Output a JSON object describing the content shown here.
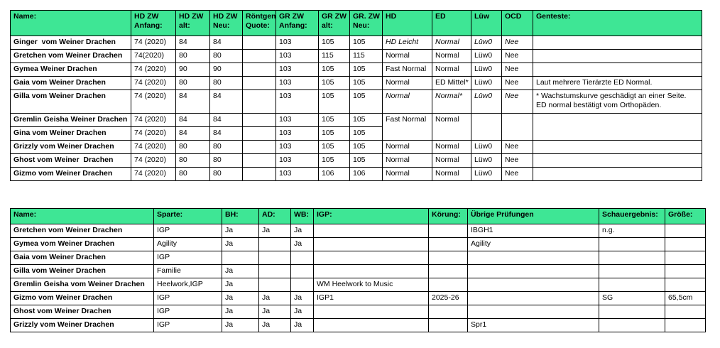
{
  "colors": {
    "header_bg": "#3ee695",
    "border": "#000000",
    "text": "#000000",
    "page_bg": "#ffffff"
  },
  "table1": {
    "headers": [
      "Name:",
      "HD ZW Anfang:",
      "HD ZW alt:",
      "HD ZW Neu:",
      "Röntgen Quote:",
      "GR ZW Anfang:",
      "GR ZW alt:",
      "GR. ZW Neu:",
      "HD",
      "ED",
      "Lüw",
      "OCD",
      "Genteste:"
    ],
    "rows": [
      {
        "cells": [
          "Ginger  vom Weiner Drachen",
          "74 (2020)",
          "84",
          "84",
          "",
          "103",
          "105",
          "105",
          "HD Leicht",
          "Normal",
          "Lüw0",
          "Nee",
          ""
        ],
        "italic_cells": [
          8,
          9,
          10,
          11
        ]
      },
      {
        "cells": [
          "Gretchen vom Weiner Drachen",
          "74(2020)",
          "80",
          "80",
          "",
          "103",
          "115",
          "115",
          "Normal",
          "Normal",
          "Lüw0",
          "Nee",
          ""
        ]
      },
      {
        "cells": [
          "Gymea Weiner Drachen",
          "74 (2020)",
          "90",
          "90",
          "",
          "103",
          "105",
          "105",
          "Fast Normal",
          "Normal",
          "Lüw0",
          "Nee",
          ""
        ]
      },
      {
        "cells": [
          "Gaia vom Weiner Drachen",
          "74 (2020)",
          "80",
          "80",
          "",
          "103",
          "105",
          "105",
          "Normal",
          "ED Mittel*",
          "Lüw0",
          "Nee",
          "Laut mehrere Tierärzte ED Normal."
        ]
      },
      {
        "cells": [
          "Gilla vom Weiner Drachen",
          "74 (2020)",
          "84",
          "84",
          "",
          "103",
          "105",
          "105",
          "Normal",
          "Normal*",
          "Lüw0",
          "Nee",
          "* Wachstumskurve geschädigt an einer Seite.\nED normal bestätigt vom Orthopäden."
        ],
        "italic_cells": [
          8,
          9,
          10,
          11
        ],
        "tall": true
      },
      {
        "cells": [
          "Gremlin Geisha Weiner Drachen",
          "74 (2020)",
          "84",
          "84",
          "",
          "103",
          "105",
          "105",
          "Fast Normal",
          "Normal",
          "",
          "",
          ""
        ],
        "hidden_bottom_from": 8
      },
      {
        "cells": [
          "Gina vom Weiner Drachen",
          "74 (2020)",
          "84",
          "84",
          "",
          "103",
          "105",
          "105",
          "",
          "",
          "",
          "",
          ""
        ],
        "hidden_top_from": 8
      },
      {
        "cells": [
          "Grizzly vom Weiner Drachen",
          "74 (2020)",
          "80",
          "80",
          "",
          "103",
          "105",
          "105",
          "Normal",
          "Normal",
          "Lüw0",
          "Nee",
          ""
        ]
      },
      {
        "cells": [
          "Ghost vom Weiner  Drachen",
          "74 (2020)",
          "80",
          "80",
          "",
          "103",
          "105",
          "105",
          "Normal",
          "Normal",
          "Lüw0",
          "Nee",
          ""
        ]
      },
      {
        "cells": [
          "Gizmo vom Weiner Drachen",
          "74 (2020)",
          "80",
          "80",
          "",
          "103",
          "106",
          "106",
          "Normal",
          "Normal",
          "Lüw0",
          "Nee",
          ""
        ]
      }
    ]
  },
  "table2": {
    "headers": [
      "Name:",
      "Sparte:",
      "BH:",
      "AD:",
      "WB:",
      "IGP:",
      "Körung:",
      "Übrige Prüfungen",
      "Schauergebnis:",
      "Größe:"
    ],
    "rows": [
      {
        "cells": [
          "Gretchen vom Weiner Drachen",
          "IGP",
          "Ja",
          "Ja",
          "Ja",
          "",
          "",
          "IBGH1",
          "n.g.",
          ""
        ]
      },
      {
        "cells": [
          "Gymea vom Weiner Drachen",
          "Agility",
          "Ja",
          "",
          "Ja",
          "",
          "",
          "Agility",
          "",
          ""
        ]
      },
      {
        "cells": [
          "Gaia vom Weiner Drachen",
          "IGP",
          "",
          "",
          "",
          "",
          "",
          "",
          "",
          ""
        ]
      },
      {
        "cells": [
          "Gilla vom Weiner Drachen",
          "Familie",
          "Ja",
          "",
          "",
          "",
          "",
          "",
          "",
          ""
        ]
      },
      {
        "cells": [
          "Gremlin Geisha vom Weiner Drachen",
          "Heelwork,IGP",
          "Ja",
          "",
          "",
          "WM Heelwork to Music",
          "",
          "",
          "",
          ""
        ]
      },
      {
        "cells": [
          "Gizmo vom Weiner Drachen",
          "IGP",
          "Ja",
          "Ja",
          "Ja",
          "IGP1",
          "2025-26",
          "",
          "SG",
          "65,5cm"
        ]
      },
      {
        "cells": [
          "Ghost vom Weiner Drachen",
          "IGP",
          "Ja",
          "Ja",
          "Ja",
          "",
          "",
          "",
          "",
          ""
        ]
      },
      {
        "cells": [
          "Grizzly vom Weiner Drachen",
          "IGP",
          "Ja",
          "Ja",
          "Ja",
          "",
          "",
          "Spr1",
          "",
          ""
        ]
      }
    ]
  }
}
